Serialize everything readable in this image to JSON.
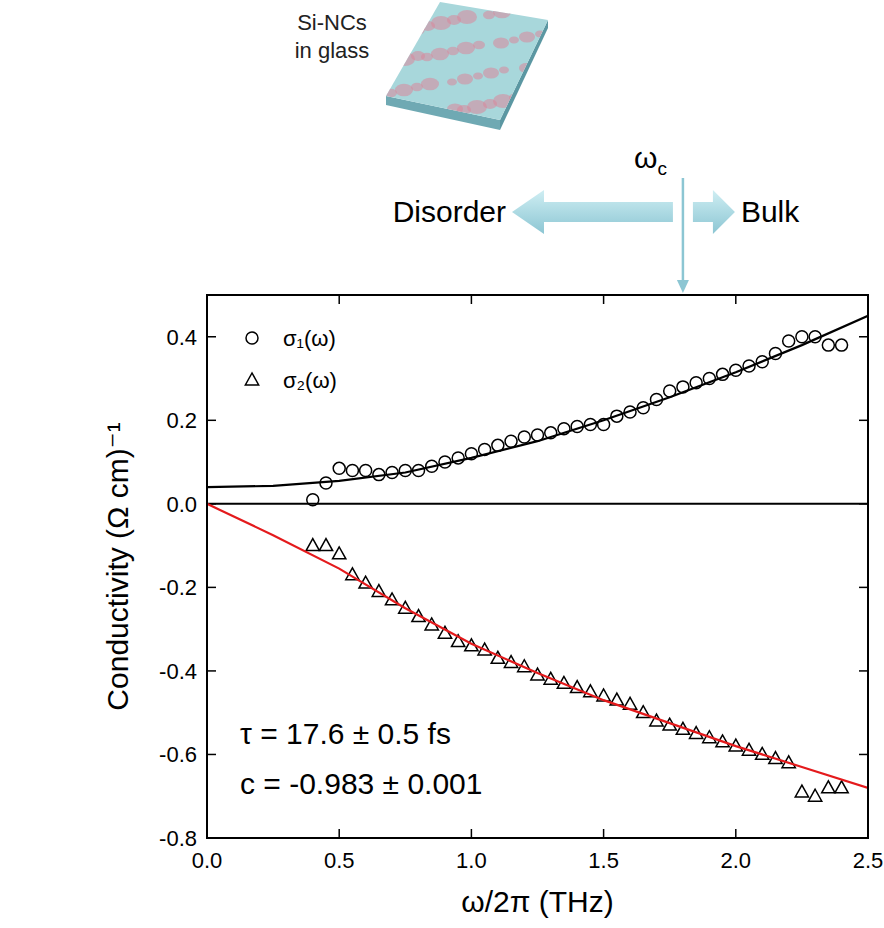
{
  "chart_data": {
    "type": "scatter",
    "x_label": "ω/2π (THz)",
    "y_label": "Conductivity (Ω cm)⁻¹",
    "xlim": [
      0,
      2.5
    ],
    "ylim": [
      -0.8,
      0.5
    ],
    "xticks": [
      {
        "value": 0,
        "label": "0.0"
      },
      0.5,
      {
        "value": 1,
        "label": "1.0"
      },
      1.5,
      {
        "value": 2,
        "label": "2.0"
      },
      2.5
    ],
    "yticks": [
      -0.8,
      -0.6,
      -0.4,
      -0.2,
      {
        "value": 0,
        "label": "0.0"
      },
      0.2,
      0.4
    ],
    "hlines": [
      0
    ],
    "legend": "top-left",
    "series": [
      {
        "name": "σ₁(ω)",
        "type": "scatter",
        "marker": "circle",
        "color": "#000000",
        "x": [
          0.4,
          0.45,
          0.5,
          0.55,
          0.6,
          0.65,
          0.7,
          0.75,
          0.8,
          0.85,
          0.9,
          0.95,
          1.0,
          1.05,
          1.1,
          1.15,
          1.2,
          1.25,
          1.3,
          1.35,
          1.4,
          1.45,
          1.5,
          1.55,
          1.6,
          1.65,
          1.7,
          1.75,
          1.8,
          1.85,
          1.9,
          1.95,
          2.0,
          2.05,
          2.1,
          2.15,
          2.2,
          2.25,
          2.3,
          2.35,
          2.4
        ],
        "values": [
          0.01,
          0.05,
          0.085,
          0.08,
          0.08,
          0.07,
          0.075,
          0.08,
          0.08,
          0.09,
          0.1,
          0.11,
          0.12,
          0.13,
          0.14,
          0.15,
          0.16,
          0.165,
          0.17,
          0.18,
          0.185,
          0.19,
          0.19,
          0.21,
          0.22,
          0.23,
          0.25,
          0.27,
          0.28,
          0.29,
          0.3,
          0.31,
          0.32,
          0.33,
          0.34,
          0.36,
          0.39,
          0.4,
          0.4,
          0.38,
          0.38
        ]
      },
      {
        "name": "σ₂(ω)",
        "type": "scatter",
        "marker": "triangle",
        "color": "#000000",
        "x": [
          0.4,
          0.45,
          0.5,
          0.55,
          0.6,
          0.65,
          0.7,
          0.75,
          0.8,
          0.85,
          0.9,
          0.95,
          1.0,
          1.05,
          1.1,
          1.15,
          1.2,
          1.25,
          1.3,
          1.35,
          1.4,
          1.45,
          1.5,
          1.55,
          1.6,
          1.65,
          1.7,
          1.75,
          1.8,
          1.85,
          1.9,
          1.95,
          2.0,
          2.05,
          2.1,
          2.15,
          2.2,
          2.25,
          2.3,
          2.35,
          2.4
        ],
        "values": [
          -0.1,
          -0.1,
          -0.12,
          -0.17,
          -0.19,
          -0.21,
          -0.23,
          -0.25,
          -0.27,
          -0.29,
          -0.31,
          -0.33,
          -0.34,
          -0.35,
          -0.37,
          -0.38,
          -0.39,
          -0.41,
          -0.42,
          -0.43,
          -0.44,
          -0.45,
          -0.46,
          -0.47,
          -0.48,
          -0.5,
          -0.52,
          -0.53,
          -0.54,
          -0.55,
          -0.56,
          -0.57,
          -0.58,
          -0.59,
          -0.6,
          -0.61,
          -0.62,
          -0.69,
          -0.7,
          -0.68,
          -0.68
        ]
      },
      {
        "type": "line",
        "line_style": "solid",
        "color": "#000000",
        "x": [
          0,
          0.25,
          0.5,
          0.75,
          1.0,
          1.25,
          1.5,
          1.75,
          2.0,
          2.25,
          2.5
        ],
        "values": [
          0.04,
          0.043,
          0.055,
          0.075,
          0.11,
          0.15,
          0.2,
          0.255,
          0.315,
          0.38,
          0.45
        ]
      },
      {
        "type": "line",
        "line_style": "solid",
        "color": "#e41a1c",
        "x": [
          0,
          0.25,
          0.5,
          0.75,
          1.0,
          1.25,
          1.5,
          1.75,
          2.0,
          2.25,
          2.5
        ],
        "values": [
          0,
          -0.075,
          -0.155,
          -0.25,
          -0.335,
          -0.405,
          -0.47,
          -0.525,
          -0.58,
          -0.63,
          -0.68
        ]
      }
    ],
    "annotations": [
      {
        "text": "τ = 17.6 ± 0.5 fs"
      },
      {
        "text": "c = -0.983 ± 0.001"
      }
    ]
  },
  "illustration": {
    "sample_label": [
      "Si-NCs",
      "in glass"
    ],
    "critical_symbol": "ω",
    "critical_subscript": "c",
    "critical_x": 1.8,
    "left_label": "Disorder",
    "right_label": "Bulk"
  }
}
